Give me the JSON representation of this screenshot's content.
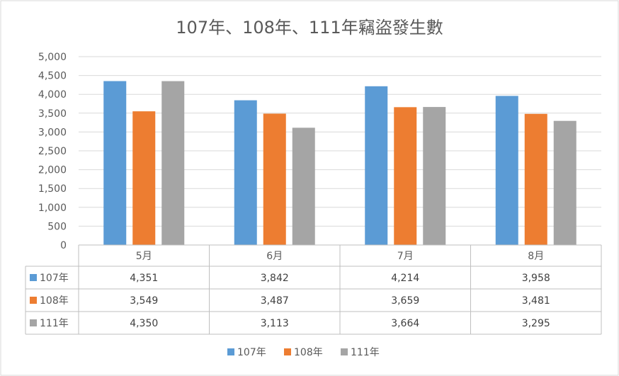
{
  "chart_data": {
    "type": "bar",
    "title": "107年、108年、111年竊盜發生數",
    "categories": [
      "5月",
      "6月",
      "7月",
      "8月"
    ],
    "series": [
      {
        "name": "107年",
        "color": "#5b9bd5",
        "values": [
          4351,
          3842,
          4214,
          3958
        ],
        "labels": [
          "4,351",
          "3,842",
          "4,214",
          "3,958"
        ]
      },
      {
        "name": "108年",
        "color": "#ed7d31",
        "values": [
          3549,
          3487,
          3659,
          3481
        ],
        "labels": [
          "3,549",
          "3,487",
          "3,659",
          "3,481"
        ]
      },
      {
        "name": "111年",
        "color": "#a5a5a5",
        "values": [
          4350,
          3113,
          3664,
          3295
        ],
        "labels": [
          "4,350",
          "3,113",
          "3,664",
          "3,295"
        ]
      }
    ],
    "ylim": [
      0,
      5000
    ],
    "yticks": [
      "0",
      "500",
      "1,000",
      "1,500",
      "2,000",
      "2,500",
      "3,000",
      "3,500",
      "4,000",
      "4,500",
      "5,000"
    ],
    "grid": true,
    "legend": "bottom-center",
    "data_table": true
  }
}
